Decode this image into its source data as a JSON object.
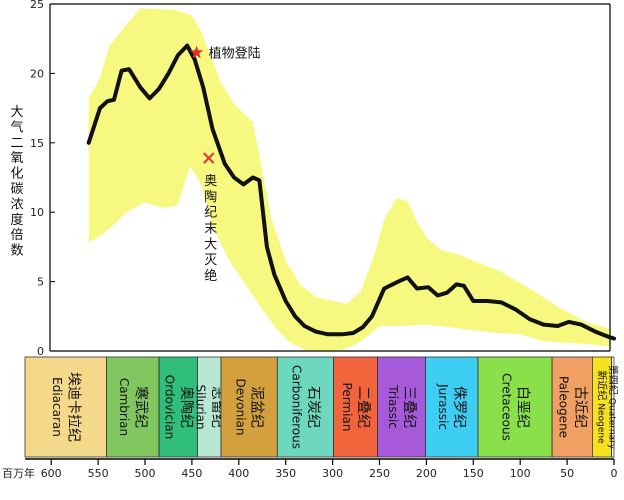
{
  "chart_data": {
    "type": "line",
    "ylabel": "大气二氧化碳浓度倍数",
    "xlabel": "百万年",
    "x_range": [
      600,
      0
    ],
    "ylim": [
      0,
      25
    ],
    "x_ticks": [
      600,
      550,
      500,
      450,
      400,
      350,
      300,
      250,
      200,
      150,
      100,
      50,
      0
    ],
    "y_ticks": [
      0,
      5,
      10,
      15,
      20,
      25
    ],
    "series": [
      {
        "values": [
          [
            560,
            15.0
          ],
          [
            548,
            17.5
          ],
          [
            540,
            18.0
          ],
          [
            533,
            18.1
          ],
          [
            525,
            20.2
          ],
          [
            517,
            20.3
          ],
          [
            505,
            19.0
          ],
          [
            495,
            18.2
          ],
          [
            485,
            18.9
          ],
          [
            475,
            20.0
          ],
          [
            465,
            21.3
          ],
          [
            455,
            22.0
          ],
          [
            447,
            21.0
          ],
          [
            438,
            19.0
          ],
          [
            428,
            16.0
          ],
          [
            415,
            13.5
          ],
          [
            405,
            12.5
          ],
          [
            395,
            12.0
          ],
          [
            385,
            12.5
          ],
          [
            378,
            12.3
          ],
          [
            370,
            7.5
          ],
          [
            362,
            5.5
          ],
          [
            350,
            3.6
          ],
          [
            340,
            2.5
          ],
          [
            330,
            1.8
          ],
          [
            318,
            1.4
          ],
          [
            305,
            1.2
          ],
          [
            290,
            1.2
          ],
          [
            278,
            1.3
          ],
          [
            268,
            1.7
          ],
          [
            258,
            2.5
          ],
          [
            245,
            4.5
          ],
          [
            230,
            5.0
          ],
          [
            220,
            5.3
          ],
          [
            210,
            4.5
          ],
          [
            198,
            4.6
          ],
          [
            188,
            4.0
          ],
          [
            178,
            4.2
          ],
          [
            168,
            4.8
          ],
          [
            160,
            4.7
          ],
          [
            150,
            3.6
          ],
          [
            135,
            3.6
          ],
          [
            120,
            3.5
          ],
          [
            105,
            3.0
          ],
          [
            90,
            2.3
          ],
          [
            75,
            1.9
          ],
          [
            60,
            1.8
          ],
          [
            48,
            2.1
          ],
          [
            35,
            1.9
          ],
          [
            20,
            1.4
          ],
          [
            5,
            1.0
          ],
          [
            0,
            0.9
          ]
        ]
      }
    ],
    "band_upper": [
      [
        560,
        18.2
      ],
      [
        548,
        19.7
      ],
      [
        538,
        22.0
      ],
      [
        520,
        23.5
      ],
      [
        505,
        24.7
      ],
      [
        470,
        24.6
      ],
      [
        450,
        24.2
      ],
      [
        440,
        23.0
      ],
      [
        430,
        21.3
      ],
      [
        420,
        19.5
      ],
      [
        405,
        17.8
      ],
      [
        385,
        16.5
      ],
      [
        375,
        13.0
      ],
      [
        365,
        9.5
      ],
      [
        350,
        6.5
      ],
      [
        335,
        4.8
      ],
      [
        318,
        3.9
      ],
      [
        300,
        3.6
      ],
      [
        285,
        3.4
      ],
      [
        270,
        4.3
      ],
      [
        255,
        7.0
      ],
      [
        245,
        9.5
      ],
      [
        232,
        11.0
      ],
      [
        220,
        10.8
      ],
      [
        210,
        9.3
      ],
      [
        200,
        8.2
      ],
      [
        185,
        7.3
      ],
      [
        168,
        7.0
      ],
      [
        150,
        6.5
      ],
      [
        120,
        5.7
      ],
      [
        90,
        4.5
      ],
      [
        60,
        3.2
      ],
      [
        30,
        2.1
      ],
      [
        0,
        1.6
      ]
    ],
    "band_lower": [
      [
        560,
        7.8
      ],
      [
        548,
        8.3
      ],
      [
        535,
        9.0
      ],
      [
        520,
        10.0
      ],
      [
        500,
        10.7
      ],
      [
        480,
        10.3
      ],
      [
        465,
        10.5
      ],
      [
        452,
        13.3
      ],
      [
        440,
        12.0
      ],
      [
        428,
        9.0
      ],
      [
        410,
        6.5
      ],
      [
        390,
        4.5
      ],
      [
        375,
        3.0
      ],
      [
        360,
        1.6
      ],
      [
        345,
        0.6
      ],
      [
        330,
        0.1
      ],
      [
        310,
        0.0
      ],
      [
        290,
        0.1
      ],
      [
        275,
        0.5
      ],
      [
        262,
        1.1
      ],
      [
        250,
        1.8
      ],
      [
        225,
        1.8
      ],
      [
        200,
        1.9
      ],
      [
        175,
        1.7
      ],
      [
        150,
        1.5
      ],
      [
        125,
        1.3
      ],
      [
        100,
        1.2
      ],
      [
        75,
        0.7
      ],
      [
        50,
        0.6
      ],
      [
        25,
        0.5
      ],
      [
        0,
        0.3
      ]
    ],
    "annotations": [
      {
        "text": "植物登陆",
        "marker": "star",
        "x": 445,
        "y": 21.5,
        "color": "#e03030"
      },
      {
        "text": "奥陶纪末大灭绝",
        "marker": "cross",
        "x": 432,
        "y": 13.9,
        "color": "#e03030"
      }
    ],
    "colors": {
      "line": "#111111",
      "band": "#f7f880",
      "axis": "#000000"
    }
  },
  "periods": [
    {
      "zh": "埃迪卡拉纪",
      "en": "Ediacaran",
      "start": 635,
      "end": 541,
      "color": "#f5d98a"
    },
    {
      "zh": "寒武纪",
      "en": "Cambrian",
      "start": 541,
      "end": 485,
      "color": "#80c760"
    },
    {
      "zh": "奥陶纪",
      "en": "Ordovician",
      "start": 485,
      "end": 444,
      "color": "#2fbf7a"
    },
    {
      "zh": "志留纪",
      "en": "Silurian",
      "start": 444,
      "end": 419,
      "color": "#b7e7d2"
    },
    {
      "zh": "泥盆纪",
      "en": "Devonian",
      "start": 419,
      "end": 359,
      "color": "#d3a03e"
    },
    {
      "zh": "石炭纪",
      "en": "Carboniferous",
      "start": 359,
      "end": 299,
      "color": "#6dd8bd"
    },
    {
      "zh": "二叠纪",
      "en": "Permian",
      "start": 299,
      "end": 252,
      "color": "#f2653c"
    },
    {
      "zh": "三叠纪",
      "en": "Triassic",
      "start": 252,
      "end": 201,
      "color": "#a65ad9"
    },
    {
      "zh": "侏罗纪",
      "en": "Jurassic",
      "start": 201,
      "end": 145,
      "color": "#3ecdf3"
    },
    {
      "zh": "白垩纪",
      "en": "Cretaceous",
      "start": 145,
      "end": 66,
      "color": "#8ae04a"
    },
    {
      "zh": "古近纪",
      "en": "Paleogene",
      "start": 66,
      "end": 23,
      "color": "#f1a063"
    },
    {
      "zh": "新近纪",
      "en": "Neogene",
      "start": 23,
      "end": 2.6,
      "color": "#f7e01e"
    },
    {
      "zh": "第四纪",
      "en": "Quaternary",
      "start": 2.6,
      "end": 0,
      "color": "#ffffff"
    }
  ]
}
